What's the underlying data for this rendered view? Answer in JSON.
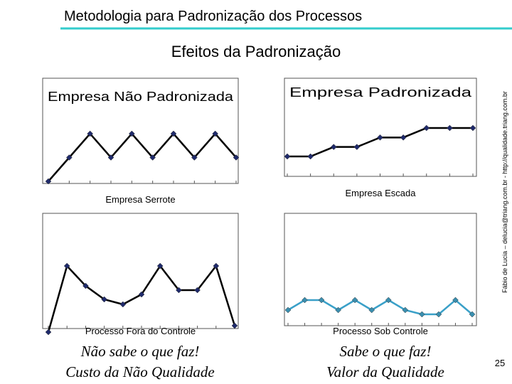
{
  "header": {
    "title": "Metodologia para Padronização dos Processos",
    "subtitle": "Efeitos da Padronização"
  },
  "footer": {
    "credit": "Fábio de Lucia – delucia@triang.com.br - http://qualidade.triang.com.br",
    "page": 25
  },
  "notes": [
    {
      "lines": [
        "Não sabe o que faz!",
        "Custo da Não Qualidade"
      ]
    },
    {
      "lines": [
        "Sabe o que faz!",
        "Valor da Qualidade"
      ]
    }
  ],
  "chart_data": [
    {
      "type": "line",
      "title": "Empresa Não Padronizada",
      "caption": "Empresa Serrote",
      "categories": [
        null,
        null,
        null,
        null,
        null,
        null,
        null,
        null,
        null,
        null
      ],
      "series": [
        {
          "color": "#000000",
          "marker_color": "#1f2a6b",
          "values": [
            0,
            1,
            2,
            1,
            2,
            1,
            2,
            1,
            2,
            1
          ]
        }
      ],
      "ylim": [
        0,
        2
      ]
    },
    {
      "type": "line",
      "title": "Empresa Padronizada",
      "caption": "Empresa Escada",
      "categories": [
        null,
        null,
        null,
        null,
        null,
        null,
        null,
        null,
        null
      ],
      "series": [
        {
          "color": "#000000",
          "marker_color": "#1f2a6b",
          "values": [
            0,
            0,
            1,
            1,
            2,
            2,
            3,
            3,
            3
          ]
        }
      ],
      "ylim": [
        0,
        3
      ]
    },
    {
      "type": "line",
      "caption": "Processo Fora do Controle",
      "categories": [
        null,
        null,
        null,
        null,
        null,
        null,
        null,
        null,
        null,
        null,
        null
      ],
      "series": [
        {
          "color": "#000000",
          "marker_color": "#1f2a6b",
          "values": [
            0.3,
            9.6,
            6.8,
            4.9,
            4.2,
            5.6,
            9.6,
            6.2,
            6.2,
            9.6,
            1.2
          ]
        }
      ],
      "ylim": [
        0,
        10
      ]
    },
    {
      "type": "line",
      "caption": "Processo Sob Controle",
      "categories": [
        null,
        null,
        null,
        null,
        null,
        null,
        null,
        null,
        null,
        null,
        null,
        null
      ],
      "series": [
        {
          "color": "#3aa0c8",
          "marker_color": "#3a8fb0",
          "values": [
            3.4,
            4.8,
            4.8,
            3.4,
            4.8,
            3.4,
            4.8,
            3.4,
            2.8,
            2.8,
            4.8,
            2.8
          ]
        }
      ],
      "ylim": [
        0,
        10
      ]
    }
  ]
}
